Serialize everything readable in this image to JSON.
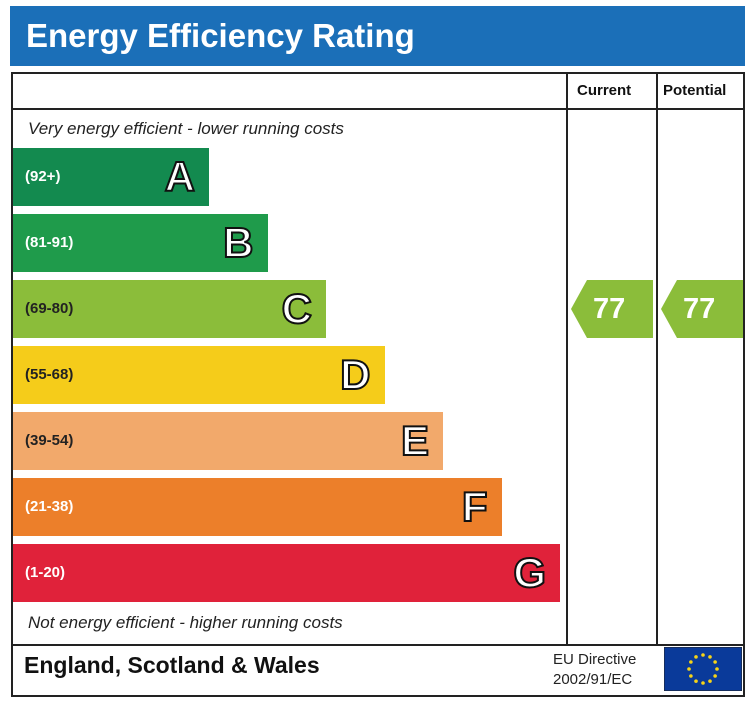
{
  "title": "Energy Efficiency Rating",
  "columns": {
    "current": "Current",
    "potential": "Potential"
  },
  "top_caption": "Very energy efficient - lower running costs",
  "bottom_caption": "Not energy efficient - higher running costs",
  "footer": {
    "country": "England, Scotland & Wales",
    "directive_line1": "EU Directive",
    "directive_line2": "2002/91/EC",
    "flag_icon": "eu-flag-icon"
  },
  "chart_data": {
    "type": "bar",
    "categories": [
      "A",
      "B",
      "C",
      "D",
      "E",
      "F",
      "G"
    ],
    "bands": [
      {
        "letter": "A",
        "range": "(92+)",
        "min": 92,
        "max": 100,
        "color": "#138a4f"
      },
      {
        "letter": "B",
        "range": "(81-91)",
        "min": 81,
        "max": 91,
        "color": "#1f9b4b"
      },
      {
        "letter": "C",
        "range": "(69-80)",
        "min": 69,
        "max": 80,
        "color": "#8bbd3a"
      },
      {
        "letter": "D",
        "range": "(55-68)",
        "min": 55,
        "max": 68,
        "color": "#f5cc1a"
      },
      {
        "letter": "E",
        "range": "(39-54)",
        "min": 39,
        "max": 54,
        "color": "#f2a96b"
      },
      {
        "letter": "F",
        "range": "(21-38)",
        "min": 21,
        "max": 38,
        "color": "#ec7f2a"
      },
      {
        "letter": "G",
        "range": "(1-20)",
        "min": 1,
        "max": 20,
        "color": "#e0223a"
      }
    ],
    "current": {
      "value": 77,
      "band": "C"
    },
    "potential": {
      "value": 77,
      "band": "C"
    }
  }
}
